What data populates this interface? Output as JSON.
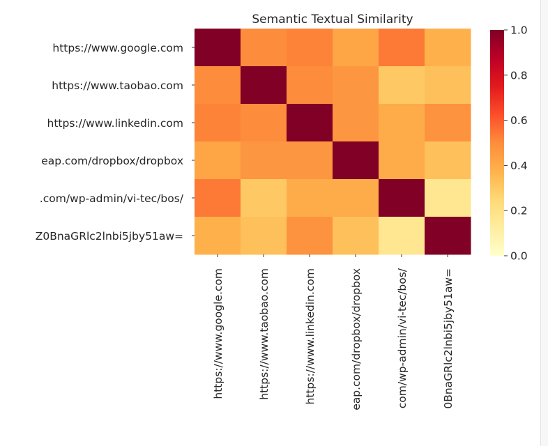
{
  "chart_data": {
    "type": "heatmap",
    "title": "Semantic Textual Similarity",
    "xlabel": "",
    "ylabel": "",
    "row_labels": [
      "https://www.google.com",
      "https://www.taobao.com",
      "https://www.linkedin.com",
      "eap.com/dropbox/dropbox",
      ".com/wp-admin/vi-tec/bos/",
      "Z0BnaGRlc2lnbi5jby51aw="
    ],
    "col_labels": [
      "https://www.google.com",
      "https://www.taobao.com",
      "https://www.linkedin.com",
      "eap.com/dropbox/dropbox",
      "com/wp-admin/vi-tec/bos/",
      "0BnaGRlc2lnbi5jby51aw="
    ],
    "values": [
      [
        1.0,
        0.5,
        0.52,
        0.42,
        0.54,
        0.38
      ],
      [
        0.5,
        1.0,
        0.5,
        0.47,
        0.3,
        0.33
      ],
      [
        0.52,
        0.5,
        1.0,
        0.47,
        0.4,
        0.48
      ],
      [
        0.42,
        0.47,
        0.47,
        1.0,
        0.4,
        0.33
      ],
      [
        0.54,
        0.3,
        0.4,
        0.4,
        1.0,
        0.17
      ],
      [
        0.38,
        0.33,
        0.48,
        0.33,
        0.17,
        1.0
      ]
    ],
    "colorbar": {
      "min": 0.0,
      "max": 1.0,
      "ticks": [
        "0.0",
        "0.2",
        "0.4",
        "0.6",
        "0.8",
        "1.0"
      ],
      "colormap": "YlOrRd"
    },
    "colormap_stops": [
      "#ffffcc",
      "#ffeda0",
      "#fed976",
      "#feb24c",
      "#fd8d3c",
      "#fc4e2a",
      "#e31a1c",
      "#bd0026",
      "#800026"
    ]
  }
}
